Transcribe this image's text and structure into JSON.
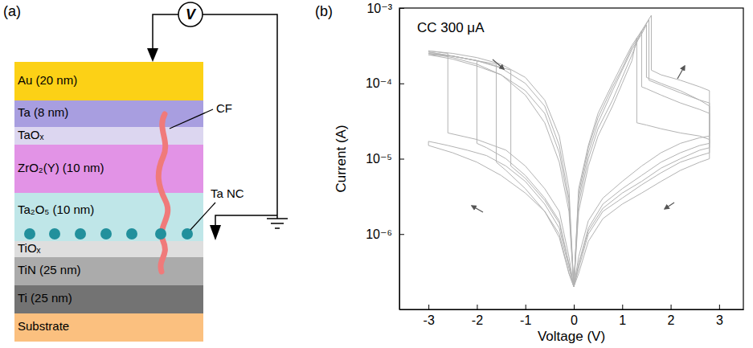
{
  "panel_labels": [
    "(a)",
    "(b)"
  ],
  "diagram": {
    "meter": "V",
    "layers": [
      {
        "label": "Au (20 nm)",
        "color": "#fcd116"
      },
      {
        "label": "Ta (8 nm)",
        "color": "#a89ee0"
      },
      {
        "label": "TaOₓ",
        "color": "#dcd6f0"
      },
      {
        "label": "ZrO₂(Y) (10 nm)",
        "color": "#e293e6"
      },
      {
        "label": "Ta₂O₅ (10 nm)",
        "color": "#bfe6e8"
      },
      {
        "label": "TiOₓ",
        "color": "#dedede"
      },
      {
        "label": "TiN (25 nm)",
        "color": "#ababab"
      },
      {
        "label": "Ti (25 nm)",
        "color": "#737373"
      },
      {
        "label": "Substrate",
        "color": "#fbc07f"
      }
    ],
    "filament": {
      "label": "CF",
      "color": "#f07a7a"
    },
    "nanocrystals": {
      "label": "Ta NC",
      "color": "#22909c"
    }
  },
  "chart_data": {
    "type": "line",
    "xlabel": "Voltage (V)",
    "ylabel": "Current (A)",
    "annotations": [
      "CC 300 μA"
    ],
    "log": "y",
    "grid": false,
    "color": "#b3b3b3",
    "xlim": [
      -3.6,
      3.5
    ],
    "xticks": [
      -3,
      -2,
      -1,
      0,
      1,
      2,
      3
    ],
    "ylim": [
      1e-07,
      0.001
    ],
    "yticks": [
      {
        "value": 1e-06,
        "label": "10⁻⁶"
      },
      {
        "value": 1e-05,
        "label": "10⁻⁵"
      },
      {
        "value": 0.0001,
        "label": "10⁻⁴"
      },
      {
        "value": 0.001,
        "label": "10⁻³"
      }
    ],
    "series": [
      {
        "x": [
          0,
          0.1,
          0.3,
          0.5,
          0.8,
          1.0,
          1.2,
          1.4,
          1.5,
          1.5,
          1.8,
          2.2,
          2.6,
          2.8,
          2.8,
          2.6,
          2.2,
          1.8,
          1.4,
          1.0,
          0.6,
          0.3,
          0.1,
          0,
          -0.1,
          -0.3,
          -0.6,
          -1.0,
          -1.4,
          -1.8,
          -2.0,
          -2.0,
          -2.5,
          -3.0,
          -3.0,
          -2.5,
          -2.0,
          -1.5,
          -1.0,
          -0.6,
          -0.3,
          -0.1,
          0
        ],
        "values": [
          2e-07,
          3e-06,
          1.2e-05,
          3e-05,
          8e-05,
          0.00015,
          0.00028,
          0.00045,
          0.0006,
          0.00012,
          0.0001,
          8e-05,
          6e-05,
          5e-05,
          1.6e-05,
          1.5e-05,
          1.2e-05,
          9e-06,
          6e-06,
          4e-06,
          2.5e-06,
          1.2e-06,
          4e-07,
          2e-07,
          4e-07,
          1.5e-06,
          3e-06,
          6e-06,
          1e-05,
          1.4e-05,
          1.6e-05,
          0.0002,
          0.00023,
          0.00026,
          0.00026,
          0.00023,
          0.0002,
          0.00016,
          0.0001,
          5e-05,
          1.5e-05,
          3e-06,
          2e-07
        ]
      },
      {
        "x": [
          0,
          0.1,
          0.3,
          0.5,
          0.8,
          1.0,
          1.2,
          1.3,
          1.3,
          1.5,
          1.8,
          2.2,
          2.6,
          2.8,
          2.8,
          2.6,
          2.2,
          1.8,
          1.4,
          1.0,
          0.6,
          0.3,
          0.1,
          0,
          -0.1,
          -0.3,
          -0.6,
          -1.0,
          -1.4,
          -1.6,
          -1.6,
          -2.0,
          -2.5,
          -3.0,
          -3.0,
          -2.5,
          -2.0,
          -1.5,
          -1.0,
          -0.6,
          -0.3,
          -0.1,
          0
        ],
        "values": [
          2e-07,
          2e-06,
          8e-06,
          2e-05,
          5e-05,
          0.0001,
          0.0002,
          0.0004,
          3e-05,
          2.8e-05,
          2.5e-05,
          2.2e-05,
          2e-05,
          1.8e-05,
          1e-05,
          9e-06,
          7e-06,
          5e-06,
          3.5e-06,
          2.5e-06,
          1.6e-06,
          8e-07,
          3e-07,
          2e-07,
          3e-07,
          1e-06,
          2e-06,
          4e-06,
          7e-06,
          9e-06,
          0.00018,
          0.0002,
          0.00023,
          0.00025,
          0.00025,
          0.00022,
          0.00018,
          0.00013,
          7e-05,
          3e-05,
          9e-06,
          2e-06,
          2e-07
        ]
      },
      {
        "x": [
          0,
          0.1,
          0.3,
          0.5,
          0.8,
          1.0,
          1.2,
          1.4,
          1.6,
          1.6,
          1.8,
          2.2,
          2.6,
          2.8,
          2.8,
          2.6,
          2.2,
          1.8,
          1.4,
          1.0,
          0.6,
          0.3,
          0.1,
          0,
          -0.1,
          -0.3,
          -0.6,
          -1.0,
          -1.4,
          -2.0,
          -2.6,
          -2.6,
          -2.8,
          -3.0,
          -3.0,
          -2.5,
          -2.0,
          -1.5,
          -1.0,
          -0.6,
          -0.3,
          -0.1,
          0
        ],
        "values": [
          2e-07,
          4e-06,
          1.5e-05,
          4e-05,
          0.0001,
          0.00018,
          0.00032,
          0.0005,
          0.0008,
          0.00015,
          0.00013,
          0.00011,
          9e-05,
          8e-05,
          2e-05,
          1.9e-05,
          1.6e-05,
          1.2e-05,
          8e-06,
          5e-06,
          3e-06,
          1.5e-06,
          5e-07,
          2e-07,
          5e-07,
          2e-06,
          4e-06,
          8e-06,
          1.3e-05,
          1.8e-05,
          2.2e-05,
          0.00025,
          0.00026,
          0.00027,
          0.00027,
          0.00025,
          0.00022,
          0.00018,
          0.00012,
          6e-05,
          2e-05,
          4e-06,
          2e-07
        ]
      },
      {
        "x": [
          0,
          0.1,
          0.3,
          0.5,
          0.8,
          1.0,
          1.2,
          1.4,
          1.4,
          1.5,
          1.8,
          2.2,
          2.6,
          2.8,
          2.8,
          2.6,
          2.2,
          1.8,
          1.4,
          1.0,
          0.6,
          0.3,
          0.1,
          0,
          -0.1,
          -0.3,
          -0.6,
          -1.0,
          -1.4,
          -1.8,
          -2.2,
          -2.6,
          -2.8,
          -3.0,
          -3.0,
          -2.5,
          -2.0,
          -1.5,
          -1.0,
          -0.6,
          -0.3,
          -0.1,
          0
        ],
        "values": [
          2e-07,
          2.5e-06,
          1e-05,
          2.5e-05,
          6e-05,
          0.00012,
          0.00024,
          0.0005,
          9e-05,
          8.5e-05,
          7e-05,
          5.5e-05,
          4.5e-05,
          4e-05,
          1.2e-05,
          1.1e-05,
          9e-06,
          6.5e-06,
          4.5e-06,
          3e-06,
          2e-06,
          1e-06,
          3.5e-07,
          2e-07,
          3.5e-07,
          1.2e-06,
          2.5e-06,
          5e-06,
          8e-06,
          1.1e-05,
          1.3e-05,
          1.5e-05,
          1.6e-05,
          1.7e-05,
          1.5e-05,
          1.2e-05,
          9e-06,
          6e-06,
          3.5e-06,
          2e-06,
          9e-07,
          3e-07,
          2e-07
        ]
      },
      {
        "x": [
          0,
          0.1,
          0.3,
          0.5,
          0.8,
          1.0,
          1.2,
          1.4,
          1.55,
          1.55,
          1.8,
          2.2,
          2.6,
          2.8,
          2.8,
          2.6,
          2.2,
          1.8,
          1.4,
          1.0,
          0.6,
          0.3,
          0.1,
          0,
          -0.1,
          -0.3,
          -0.6,
          -1.0,
          -1.3,
          -1.3,
          -1.6,
          -2.0,
          -2.5,
          -3.0,
          -3.0,
          -2.5,
          -2.0,
          -1.5,
          -1.0,
          -0.6,
          -0.3,
          -0.1,
          0
        ],
        "values": [
          2e-07,
          3.5e-06,
          1.4e-05,
          3.5e-05,
          9e-05,
          0.00016,
          0.0003,
          0.00048,
          0.0007,
          0.00011,
          9.5e-05,
          7.5e-05,
          6e-05,
          5.5e-05,
          1.4e-05,
          1.3e-05,
          1e-05,
          7.5e-06,
          5e-06,
          3.5e-06,
          2.2e-06,
          1.1e-06,
          4e-07,
          2e-07,
          4e-07,
          1.4e-06,
          2.8e-06,
          5.5e-06,
          8e-06,
          0.00015,
          0.00017,
          0.0002,
          0.00023,
          0.00024,
          0.00024,
          0.00021,
          0.00017,
          0.00013,
          8e-05,
          4e-05,
          1.2e-05,
          2.5e-06,
          2e-07
        ]
      }
    ]
  }
}
